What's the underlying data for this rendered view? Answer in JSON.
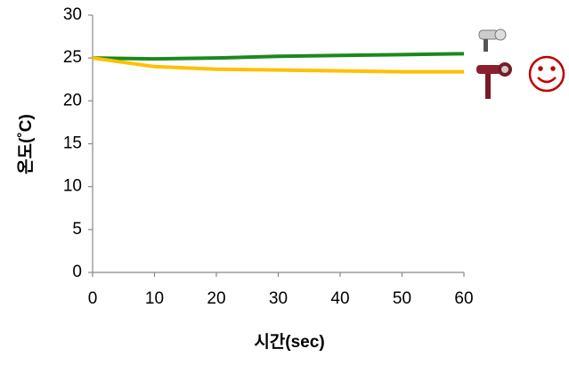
{
  "chart_data": {
    "type": "line",
    "x": [
      0,
      10,
      20,
      30,
      40,
      50,
      60
    ],
    "series": [
      {
        "color": "#1a8a1a",
        "values": [
          25,
          24.9,
          25,
          25.2,
          25.3,
          25.4,
          25.5
        ]
      },
      {
        "color": "#ffc000",
        "values": [
          25,
          24,
          23.7,
          23.6,
          23.5,
          23.4,
          23.4
        ]
      }
    ],
    "xlim": [
      0,
      60
    ],
    "xticks": [
      0,
      10,
      20,
      30,
      40,
      50,
      60
    ],
    "ylim": [
      0,
      30
    ],
    "yticks": [
      0,
      5,
      10,
      15,
      20,
      25,
      30
    ],
    "xlabel": "시간(sec)",
    "ylabel": "온도(˚C)"
  }
}
